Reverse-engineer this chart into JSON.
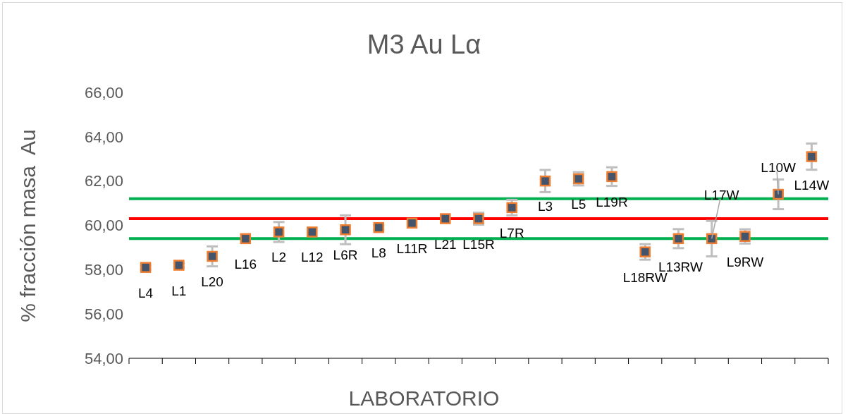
{
  "chart_data": {
    "type": "scatter",
    "title": "M3 Au Lα",
    "xlabel": "LABORATORIO",
    "ylabel": "% fracción masa  Au",
    "categories": [
      null,
      null,
      null,
      null,
      null,
      null,
      null,
      null,
      null,
      null,
      null,
      null,
      null,
      null,
      null,
      null,
      null,
      null,
      null,
      null,
      null
    ],
    "values": [
      58.1,
      58.2,
      58.6,
      59.4,
      59.7,
      59.7,
      59.8,
      59.9,
      60.1,
      60.3,
      60.3,
      60.8,
      62.0,
      62.1,
      62.2,
      58.8,
      59.4,
      59.4,
      59.5,
      61.4,
      63.1
    ],
    "value_labels": [
      "L4",
      "L1",
      "L20",
      "L16",
      "L2",
      "L12",
      "L6R",
      "L8",
      "L11R",
      "L21",
      "L15R",
      "L7R",
      "L3",
      "L5",
      "L19R",
      "L18RW",
      "L13RW",
      "L17W",
      "L9RW",
      "L10W",
      "L14W"
    ],
    "errors": [
      0.1,
      0.1,
      0.45,
      null,
      0.45,
      null,
      0.65,
      0.1,
      null,
      null,
      0.27,
      0.35,
      0.5,
      0.3,
      0.42,
      0.35,
      0.43,
      0.8,
      0.32,
      0.67,
      0.59
    ],
    "color": "#44546a",
    "marker": "square",
    "ylim": [
      54,
      66
    ],
    "yticks": [
      {
        "value": 54,
        "label": "54,00"
      },
      {
        "value": 56,
        "label": "56,00"
      },
      {
        "value": 58,
        "label": "58,00"
      },
      {
        "value": 60,
        "label": "60,00"
      },
      {
        "value": 62,
        "label": "62,00"
      },
      {
        "value": 64,
        "label": "64,00"
      },
      {
        "value": 66,
        "label": "66,00"
      }
    ],
    "tick_labels": "y",
    "ref_lines": [
      {
        "axis": "y",
        "value": 61.2,
        "color": "#00b050"
      },
      {
        "axis": "y",
        "value": 60.3,
        "color": "#ff0000"
      },
      {
        "axis": "y",
        "value": 59.4,
        "color": "#00b050"
      }
    ]
  }
}
